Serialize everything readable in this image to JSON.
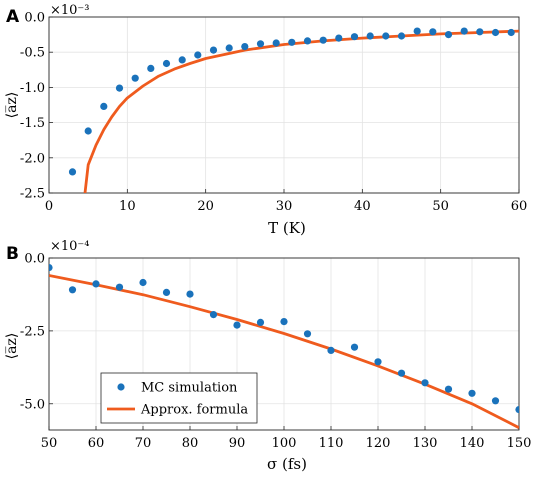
{
  "chart_data": [
    {
      "type": "scatter",
      "panel_label": "A",
      "xlabel": "T (K)",
      "ylabel": "⟨a̅z⟩",
      "exponent_label": "×10⁻³",
      "xlim": [
        0,
        60
      ],
      "ylim": [
        -2.5,
        0
      ],
      "xticks": [
        "0",
        "10",
        "20",
        "30",
        "40",
        "50",
        "60"
      ],
      "yticks": [
        "0.0",
        "-0.5",
        "-1.0",
        "-1.5",
        "-2.0",
        "-2.5"
      ],
      "grid": true,
      "colors": {
        "points": "#1a72bb",
        "line": "#ef5b1e"
      },
      "series": [
        {
          "kind": "points",
          "x": [
            3,
            5,
            7,
            9,
            11,
            13,
            15,
            17,
            19,
            21,
            23,
            25,
            27,
            29,
            31,
            33,
            35,
            37,
            39,
            41,
            43,
            45,
            47,
            49,
            51,
            53,
            55,
            57,
            59
          ],
          "y": [
            -2.2,
            -1.62,
            -1.27,
            -1.01,
            -0.87,
            -0.73,
            -0.66,
            -0.61,
            -0.54,
            -0.47,
            -0.44,
            -0.42,
            -0.38,
            -0.37,
            -0.36,
            -0.34,
            -0.33,
            -0.3,
            -0.28,
            -0.27,
            -0.27,
            -0.27,
            -0.2,
            -0.21,
            -0.25,
            -0.2,
            -0.21,
            -0.22,
            -0.22
          ]
        },
        {
          "kind": "line",
          "x": [
            4.6,
            5,
            6,
            7,
            8,
            9,
            10,
            12,
            14,
            16,
            18,
            20,
            25,
            30,
            35,
            40,
            45,
            50,
            55,
            60
          ],
          "y": [
            -2.5,
            -2.1,
            -1.82,
            -1.6,
            -1.42,
            -1.27,
            -1.15,
            -0.98,
            -0.84,
            -0.74,
            -0.66,
            -0.59,
            -0.47,
            -0.39,
            -0.34,
            -0.3,
            -0.27,
            -0.24,
            -0.22,
            -0.2
          ]
        }
      ]
    },
    {
      "type": "scatter",
      "panel_label": "B",
      "xlabel": "σ (fs)",
      "ylabel": "⟨a̅z⟩",
      "exponent_label": "×10⁻⁴",
      "xlim": [
        50,
        150
      ],
      "ylim": [
        -5.9,
        0
      ],
      "xticks": [
        "50",
        "60",
        "70",
        "80",
        "90",
        "100",
        "110",
        "120",
        "130",
        "140",
        "150"
      ],
      "yticks": [
        "0.0",
        "-2.5",
        "-5.0"
      ],
      "grid": true,
      "colors": {
        "points": "#1a72bb",
        "line": "#ef5b1e"
      },
      "legend": {
        "position": "bottom-left",
        "items": [
          {
            "label": "MC simulation",
            "kind": "points"
          },
          {
            "label": "Approx. formula",
            "kind": "line"
          }
        ]
      },
      "series": [
        {
          "name": "MC simulation",
          "kind": "points",
          "x": [
            50,
            55,
            60,
            65,
            70,
            75,
            80,
            85,
            90,
            95,
            100,
            105,
            110,
            115,
            120,
            125,
            130,
            135,
            140,
            145,
            150
          ],
          "y": [
            -0.33,
            -1.09,
            -0.89,
            -1.0,
            -0.84,
            -1.18,
            -1.24,
            -1.94,
            -2.3,
            -2.21,
            -2.18,
            -2.6,
            -3.17,
            -3.06,
            -3.56,
            -3.95,
            -4.28,
            -4.5,
            -4.64,
            -4.9,
            -5.2
          ]
        },
        {
          "name": "Approx. formula",
          "kind": "line",
          "x": [
            50,
            60,
            70,
            80,
            90,
            100,
            110,
            120,
            130,
            140,
            150
          ],
          "y": [
            -0.6,
            -0.92,
            -1.26,
            -1.67,
            -2.11,
            -2.59,
            -3.12,
            -3.7,
            -4.33,
            -5.0,
            -5.82
          ]
        }
      ]
    }
  ]
}
